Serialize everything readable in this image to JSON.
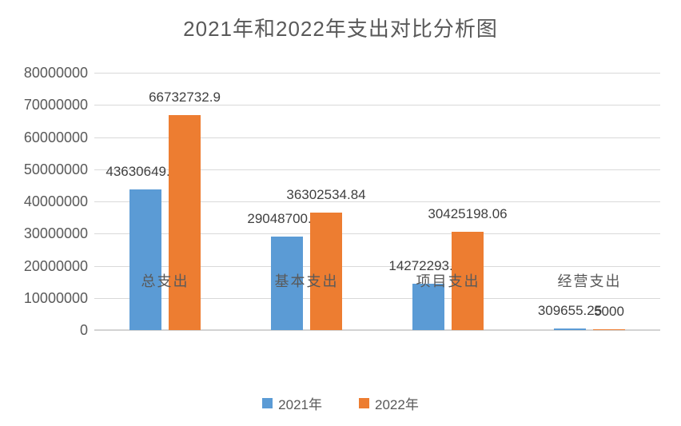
{
  "title": "2021年和2022年支出对比分析图",
  "colors": {
    "series_2021": "#5B9BD5",
    "series_2022": "#ED7D31",
    "gridline": "#D9D9D9",
    "axis_line": "#D3D3D3",
    "title_text": "#595959",
    "axis_text": "#595959",
    "data_label_text": "#404040",
    "background": "#FFFFFF"
  },
  "legend": {
    "position": "bottom",
    "items": [
      {
        "label": "2021年",
        "color": "#5B9BD5"
      },
      {
        "label": "2022年",
        "color": "#ED7D31"
      }
    ]
  },
  "chart_data": {
    "type": "bar",
    "title": "2021年和2022年支出对比分析图",
    "categories": [
      "总支出",
      "基本支出",
      "项目支出",
      "经营支出"
    ],
    "series": [
      {
        "name": "2021年",
        "color": "#5B9BD5",
        "values": [
          43630649.08,
          29048700.15,
          14272293.73,
          309655.25
        ],
        "data_labels": [
          "43630649.08",
          "29048700.15",
          "14272293.73",
          "309655.25"
        ]
      },
      {
        "name": "2022年",
        "color": "#ED7D31",
        "values": [
          66732732.9,
          36302534.84,
          30425198.06,
          5000
        ],
        "data_labels": [
          "66732732.9",
          "36302534.84",
          "30425198.06",
          "5000"
        ]
      }
    ],
    "xlabel": "",
    "ylabel": "",
    "ylim": [
      0,
      80000000
    ],
    "ytick_step": 10000000,
    "ytick_labels": [
      "0",
      "10000000",
      "20000000",
      "30000000",
      "40000000",
      "50000000",
      "60000000",
      "70000000",
      "80000000"
    ],
    "grid": true,
    "legend_position": "bottom",
    "data_label_position": "outside-end"
  }
}
